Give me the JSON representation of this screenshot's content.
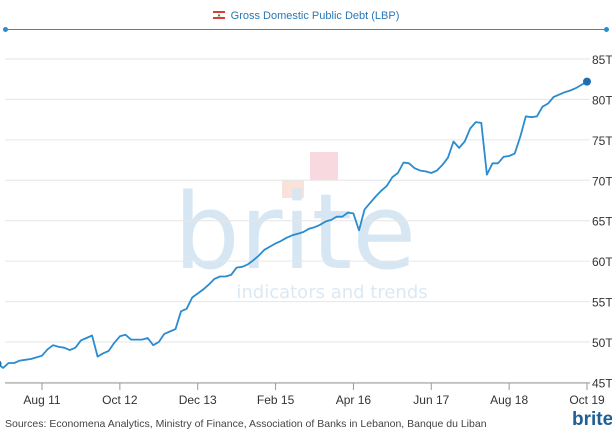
{
  "header": {
    "title": "Gross Domestic Public Debt (LBP)",
    "flag_icon": "lebanon-flag-icon"
  },
  "watermark": {
    "brand": "brite",
    "tagline": "indicators and trends"
  },
  "footer": {
    "sources": "Sources: Economena Analytics, Ministry of Finance, Association of Banks in Lebanon, Banque du Liban",
    "brand": "brite"
  },
  "colors": {
    "line": "#2a8ccf",
    "title": "#2a78b8",
    "grid": "#e6e6e6"
  },
  "chart_data": {
    "type": "line",
    "title": "Gross Domestic Public Debt (LBP)",
    "xlabel": "",
    "ylabel": "",
    "y_unit": "T",
    "ylim": [
      45,
      88
    ],
    "y_ticks": [
      45,
      50,
      55,
      60,
      65,
      70,
      75,
      80,
      85
    ],
    "y_tick_labels": [
      "45T",
      "50T",
      "55T",
      "60T",
      "65T",
      "70T",
      "75T",
      "80T",
      "85T"
    ],
    "x_ticks": [
      "2011-08",
      "2012-10",
      "2013-12",
      "2015-02",
      "2016-04",
      "2017-06",
      "2018-08",
      "2019-10"
    ],
    "x_tick_labels": [
      "Aug 11",
      "Oct 12",
      "Dec 13",
      "Feb 15",
      "Apr 16",
      "Jun 17",
      "Aug 18",
      "Oct 19"
    ],
    "grid": true,
    "legend": "none",
    "series": [
      {
        "x": [
          "2010-12",
          "2011-01",
          "2011-02",
          "2011-03",
          "2011-04",
          "2011-05",
          "2011-06",
          "2011-07",
          "2011-08",
          "2011-09",
          "2011-10",
          "2011-11",
          "2011-12",
          "2012-01",
          "2012-02",
          "2012-03",
          "2012-04",
          "2012-05",
          "2012-06",
          "2012-07",
          "2012-08",
          "2012-09",
          "2012-10",
          "2012-11",
          "2012-12",
          "2013-01",
          "2013-02",
          "2013-03",
          "2013-04",
          "2013-05",
          "2013-06",
          "2013-07",
          "2013-08",
          "2013-09",
          "2013-10",
          "2013-11",
          "2013-12",
          "2014-01",
          "2014-02",
          "2014-03",
          "2014-04",
          "2014-05",
          "2014-06",
          "2014-07",
          "2014-08",
          "2014-09",
          "2014-10",
          "2014-11",
          "2014-12",
          "2015-01",
          "2015-02",
          "2015-03",
          "2015-04",
          "2015-05",
          "2015-06",
          "2015-07",
          "2015-08",
          "2015-09",
          "2015-10",
          "2015-11",
          "2015-12",
          "2016-01",
          "2016-02",
          "2016-03",
          "2016-04",
          "2016-05",
          "2016-06",
          "2016-07",
          "2016-08",
          "2016-09",
          "2016-10",
          "2016-11",
          "2016-12",
          "2017-01",
          "2017-02",
          "2017-03",
          "2017-04",
          "2017-05",
          "2017-06",
          "2017-07",
          "2017-08",
          "2017-09",
          "2017-10",
          "2017-11",
          "2017-12",
          "2018-01",
          "2018-02",
          "2018-03",
          "2018-04",
          "2018-05",
          "2018-06",
          "2018-07",
          "2018-08",
          "2018-09",
          "2018-10",
          "2018-11",
          "2018-12",
          "2019-01",
          "2019-02",
          "2019-03",
          "2019-04",
          "2019-05",
          "2019-06",
          "2019-07",
          "2019-08",
          "2019-09",
          "2019-10"
        ],
        "values": [
          47.3,
          46.8,
          47.4,
          47.4,
          47.7,
          47.8,
          47.9,
          48.1,
          48.3,
          49.1,
          49.6,
          49.4,
          49.3,
          49.0,
          49.3,
          50.2,
          50.5,
          50.8,
          48.2,
          48.6,
          48.9,
          49.9,
          50.7,
          50.9,
          50.3,
          50.3,
          50.3,
          50.5,
          49.6,
          50.0,
          51.0,
          51.3,
          51.6,
          53.8,
          54.1,
          55.5,
          56.0,
          56.5,
          57.1,
          57.8,
          58.1,
          58.1,
          58.3,
          59.2,
          59.3,
          59.6,
          60.1,
          60.7,
          61.4,
          61.8,
          62.2,
          62.5,
          62.9,
          63.2,
          63.4,
          63.6,
          64.0,
          64.2,
          64.5,
          64.9,
          65.1,
          65.5,
          65.5,
          66.0,
          65.9,
          63.8,
          66.4,
          67.2,
          68.0,
          68.7,
          69.3,
          70.4,
          70.9,
          72.2,
          72.1,
          71.5,
          71.2,
          71.1,
          70.9,
          71.2,
          71.9,
          72.8,
          74.8,
          74.0,
          74.8,
          76.4,
          77.2,
          77.1,
          70.7,
          72.1,
          72.1,
          72.9,
          73.0,
          73.3,
          75.4,
          77.9,
          77.8,
          77.9,
          79.1,
          79.5,
          80.3,
          80.6,
          80.9,
          81.1,
          81.4,
          81.8,
          82.2
        ]
      }
    ]
  }
}
